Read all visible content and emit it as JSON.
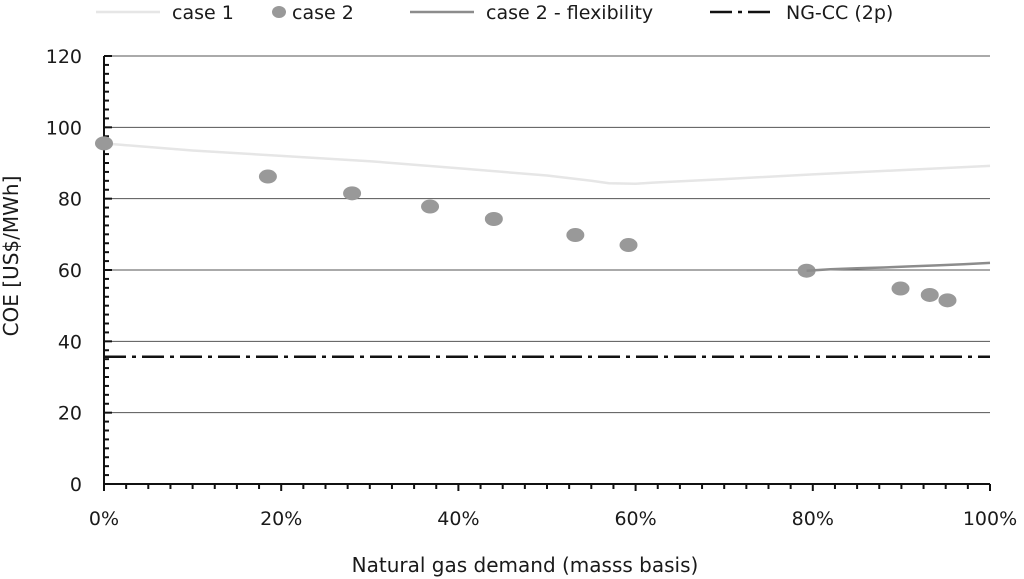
{
  "chart_data": {
    "type": "line",
    "xlabel": "Natural gas demand (masss basis)",
    "ylabel": "COE [US$/MWh]",
    "xlim": [
      0,
      100
    ],
    "ylim": [
      0,
      120
    ],
    "x_ticks": [
      0,
      20,
      40,
      60,
      80,
      100
    ],
    "x_tick_labels": [
      "0%",
      "20%",
      "40%",
      "60%",
      "80%",
      "100%"
    ],
    "y_ticks": [
      0,
      20,
      40,
      60,
      80,
      100,
      120
    ],
    "y_tick_labels": [
      "0",
      "20",
      "40",
      "60",
      "80",
      "100",
      "120"
    ],
    "grid": "horizontal",
    "legend_position": "top",
    "series": [
      {
        "name": "case 1",
        "kind": "line",
        "color": "#e6e6e6",
        "x": [
          0,
          10,
          20,
          30,
          40,
          50,
          55,
          57,
          60,
          62,
          70,
          80,
          90,
          100
        ],
        "y": [
          95.5,
          93.5,
          92,
          90.5,
          88.5,
          86.5,
          85,
          84.3,
          84.2,
          84.5,
          85.5,
          86.8,
          88,
          89.2
        ]
      },
      {
        "name": "case 2",
        "kind": "scatter",
        "color": "#999999",
        "x": [
          0,
          18.5,
          28,
          36.8,
          44,
          53.2,
          59.2,
          79.3,
          89.9,
          93.2,
          95.2
        ],
        "y": [
          95.5,
          86.2,
          81.5,
          77.8,
          74.3,
          69.8,
          67,
          59.8,
          54.8,
          53,
          51.5
        ]
      },
      {
        "name": "case 2 - flexibility",
        "kind": "line",
        "color": "#8c8c8c",
        "x": [
          79.3,
          82,
          85,
          88,
          91,
          94,
          97,
          100
        ],
        "y": [
          59.8,
          60.2,
          60.5,
          60.7,
          61,
          61.3,
          61.6,
          62
        ]
      },
      {
        "name": "NG-CC (2p)",
        "kind": "dashdot",
        "color": "#111111",
        "x": [
          0,
          100
        ],
        "y": [
          35.7,
          35.7
        ]
      }
    ]
  }
}
